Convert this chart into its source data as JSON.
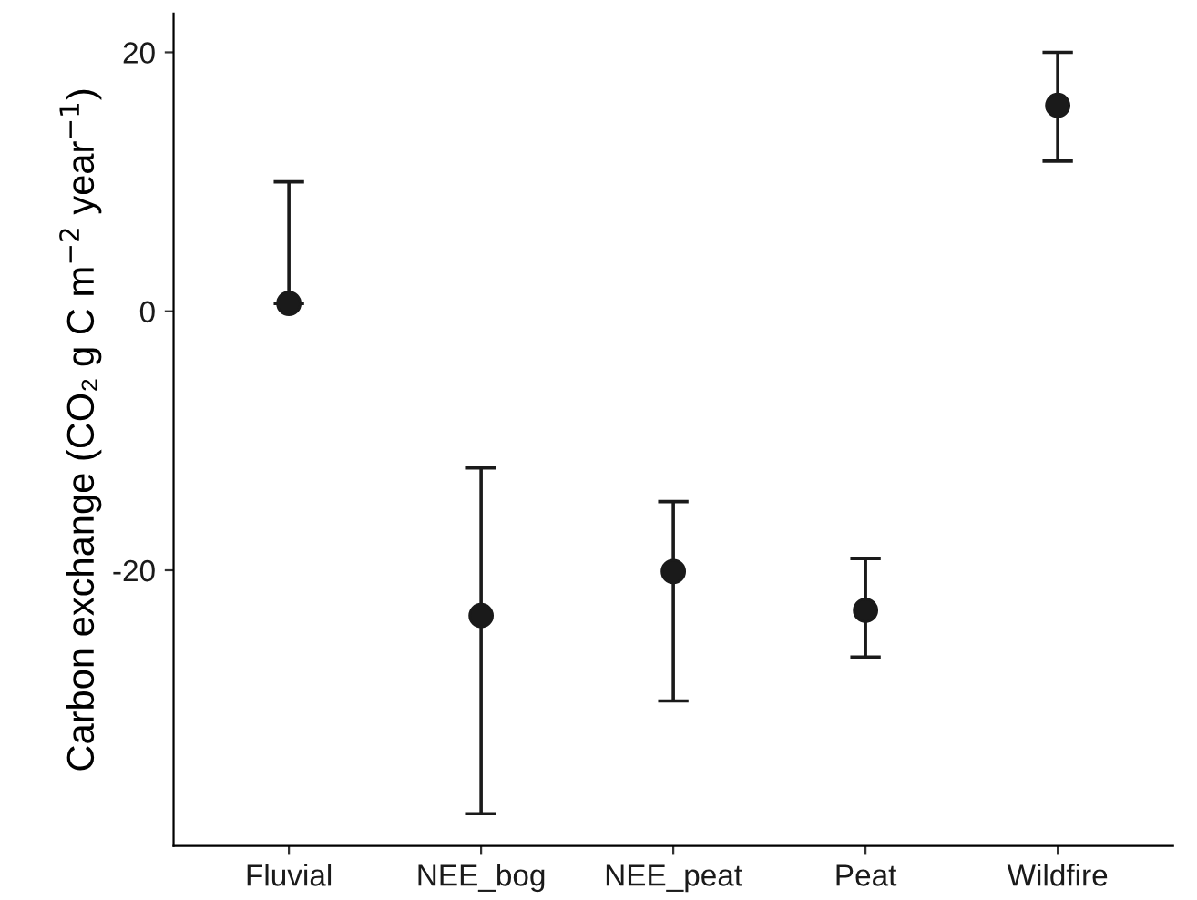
{
  "chart_data": {
    "type": "scatter",
    "ylabel": "Carbon exchange (CO₂ g C m$^{−2}$ year$^{−1}$)",
    "categories": [
      "Fluvial",
      "NEE_bog",
      "NEE_peat",
      "Peat",
      "Wildfire"
    ],
    "values": [
      0.6,
      -23.5,
      -20.1,
      -23.1,
      15.9
    ],
    "errors": [
      [
        0.6,
        10
      ],
      [
        -38.8,
        -12.1
      ],
      [
        -30.1,
        -14.7
      ],
      [
        -26.7,
        -19.1
      ],
      [
        11.6,
        20
      ]
    ],
    "color": "#1a1a1a",
    "marker": "circle",
    "ylim": [
      -41.3,
      23
    ],
    "yticks": [
      -20,
      0,
      20
    ],
    "grid": false,
    "legend": false
  }
}
